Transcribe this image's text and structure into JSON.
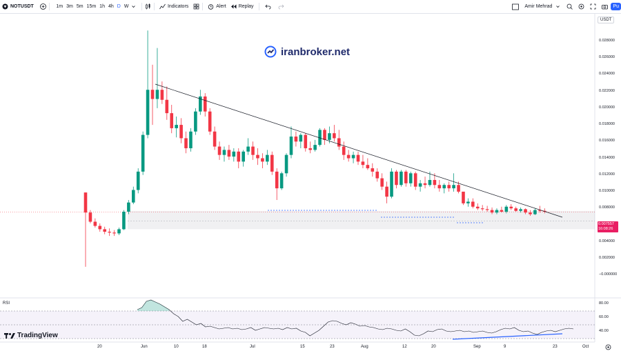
{
  "toolbar": {
    "symbol": "NOTUSDT",
    "timeframes": [
      "1m",
      "3m",
      "5m",
      "15m",
      "1h",
      "4h",
      "D",
      "W"
    ],
    "active_timeframe": "D",
    "indicators_label": "Indicators",
    "alert_label": "Alert",
    "replay_label": "Replay",
    "user_name": "Amir Mehrad",
    "publish_label": "Pu"
  },
  "watermark": {
    "text": "iranbroker.net"
  },
  "branding": {
    "text": "TradingView"
  },
  "price_axis": {
    "currency": "USDT",
    "ticks": [
      "0.028000",
      "0.026000",
      "0.024000",
      "0.022000",
      "0.020000",
      "0.018000",
      "0.016000",
      "0.014000",
      "0.012000",
      "0.010000",
      "0.008000",
      "0.006000",
      "0.004000",
      "0.002000",
      "−0.000000"
    ],
    "last_price": "0.007557",
    "countdown": "16:08:26"
  },
  "time_axis": {
    "ticks": [
      "20",
      "Jun",
      "10",
      "18",
      "Jul",
      "15",
      "23",
      "Aug",
      "12",
      "20",
      "Sep",
      "9",
      "23",
      "Oct"
    ]
  },
  "rsi": {
    "label": "RSI",
    "ticks": [
      "80.00",
      "60.00",
      "40.00"
    ]
  },
  "chart_data": {
    "type": "candlestick",
    "symbol": "NOTUSDT",
    "interval": "D",
    "ylim": [
      0,
      0.029
    ],
    "y_ticks": [
      0,
      0.002,
      0.004,
      0.006,
      0.008,
      0.01,
      0.012,
      0.014,
      0.016,
      0.018,
      0.02,
      0.022,
      0.024,
      0.026,
      0.028
    ],
    "last_price": 0.007557,
    "support_zone": [
      0.0055,
      0.0077
    ],
    "up_color": "#089981",
    "down_color": "#f23645",
    "candles": [
      [
        0.0099,
        0.0099,
        0.001,
        0.0075
      ],
      [
        0.0075,
        0.0078,
        0.0062,
        0.0064
      ],
      [
        0.0064,
        0.0068,
        0.0057,
        0.0059
      ],
      [
        0.0059,
        0.0062,
        0.0052,
        0.0055
      ],
      [
        0.0055,
        0.0058,
        0.0049,
        0.0052
      ],
      [
        0.0052,
        0.0056,
        0.0047,
        0.0051
      ],
      [
        0.0051,
        0.0054,
        0.0047,
        0.005
      ],
      [
        0.005,
        0.0057,
        0.0048,
        0.0055
      ],
      [
        0.0055,
        0.0078,
        0.0054,
        0.0076
      ],
      [
        0.0076,
        0.009,
        0.0073,
        0.0087
      ],
      [
        0.0087,
        0.0106,
        0.0085,
        0.0102
      ],
      [
        0.0102,
        0.0128,
        0.0098,
        0.0124
      ],
      [
        0.0124,
        0.0172,
        0.012,
        0.0168
      ],
      [
        0.0168,
        0.0293,
        0.0164,
        0.0222
      ],
      [
        0.0222,
        0.0252,
        0.018,
        0.0211
      ],
      [
        0.0211,
        0.0272,
        0.02,
        0.0222
      ],
      [
        0.0222,
        0.0232,
        0.0205,
        0.021
      ],
      [
        0.021,
        0.0226,
        0.0186,
        0.0194
      ],
      [
        0.0194,
        0.0204,
        0.017,
        0.0176
      ],
      [
        0.0176,
        0.019,
        0.0165,
        0.018
      ],
      [
        0.018,
        0.0188,
        0.0158,
        0.0164
      ],
      [
        0.0164,
        0.0172,
        0.0146,
        0.0152
      ],
      [
        0.0152,
        0.0176,
        0.0148,
        0.0172
      ],
      [
        0.0172,
        0.02,
        0.0168,
        0.0196
      ],
      [
        0.0196,
        0.0222,
        0.0192,
        0.0214
      ],
      [
        0.0214,
        0.0218,
        0.019,
        0.0196
      ],
      [
        0.0196,
        0.02,
        0.0168,
        0.0172
      ],
      [
        0.0172,
        0.0178,
        0.015,
        0.0154
      ],
      [
        0.0154,
        0.016,
        0.0138,
        0.0144
      ],
      [
        0.0144,
        0.0154,
        0.0136,
        0.015
      ],
      [
        0.015,
        0.0156,
        0.0138,
        0.0142
      ],
      [
        0.0142,
        0.0152,
        0.0136,
        0.0148
      ],
      [
        0.0148,
        0.0152,
        0.0128,
        0.0136
      ],
      [
        0.0136,
        0.015,
        0.013,
        0.0148
      ],
      [
        0.0148,
        0.0164,
        0.0144,
        0.0154
      ],
      [
        0.0154,
        0.016,
        0.0138,
        0.0144
      ],
      [
        0.0144,
        0.0152,
        0.0132,
        0.014
      ],
      [
        0.014,
        0.0146,
        0.0128,
        0.0136
      ],
      [
        0.0136,
        0.015,
        0.0132,
        0.0144
      ],
      [
        0.0144,
        0.0148,
        0.012,
        0.0124
      ],
      [
        0.0124,
        0.0128,
        0.009,
        0.0104
      ],
      [
        0.0104,
        0.0124,
        0.0102,
        0.0122
      ],
      [
        0.0122,
        0.0146,
        0.0118,
        0.0144
      ],
      [
        0.0144,
        0.0178,
        0.014,
        0.0166
      ],
      [
        0.0166,
        0.0172,
        0.0154,
        0.016
      ],
      [
        0.016,
        0.017,
        0.0152,
        0.0168
      ],
      [
        0.0168,
        0.017,
        0.0148,
        0.0152
      ],
      [
        0.0152,
        0.016,
        0.0146,
        0.015
      ],
      [
        0.015,
        0.0162,
        0.0148,
        0.0156
      ],
      [
        0.0156,
        0.0176,
        0.0154,
        0.0174
      ],
      [
        0.0174,
        0.0176,
        0.0156,
        0.0162
      ],
      [
        0.0162,
        0.0178,
        0.0158,
        0.017
      ],
      [
        0.017,
        0.018,
        0.016,
        0.0164
      ],
      [
        0.0164,
        0.0174,
        0.015,
        0.0154
      ],
      [
        0.0154,
        0.016,
        0.0138,
        0.0144
      ],
      [
        0.0144,
        0.015,
        0.0136,
        0.014
      ],
      [
        0.014,
        0.0148,
        0.0134,
        0.0144
      ],
      [
        0.0144,
        0.0148,
        0.0132,
        0.0136
      ],
      [
        0.0136,
        0.0144,
        0.0128,
        0.0132
      ],
      [
        0.0132,
        0.014,
        0.0126,
        0.0128
      ],
      [
        0.0128,
        0.0134,
        0.0118,
        0.0124
      ],
      [
        0.0124,
        0.0128,
        0.0112,
        0.0116
      ],
      [
        0.0116,
        0.0122,
        0.0102,
        0.0106
      ],
      [
        0.0106,
        0.0112,
        0.0086,
        0.0094
      ],
      [
        0.0094,
        0.0128,
        0.0092,
        0.0124
      ],
      [
        0.0124,
        0.0126,
        0.0104,
        0.0108
      ],
      [
        0.0108,
        0.0126,
        0.0106,
        0.0124
      ],
      [
        0.0124,
        0.0126,
        0.0106,
        0.011
      ],
      [
        0.011,
        0.0124,
        0.0106,
        0.0122
      ],
      [
        0.0122,
        0.0124,
        0.0102,
        0.0106
      ],
      [
        0.0106,
        0.0114,
        0.01,
        0.011
      ],
      [
        0.011,
        0.0118,
        0.0104,
        0.0108
      ],
      [
        0.0108,
        0.0124,
        0.0106,
        0.0114
      ],
      [
        0.0114,
        0.0122,
        0.0104,
        0.0108
      ],
      [
        0.0108,
        0.0114,
        0.01,
        0.0104
      ],
      [
        0.0104,
        0.011,
        0.0098,
        0.0108
      ],
      [
        0.0108,
        0.0112,
        0.01,
        0.0104
      ],
      [
        0.0104,
        0.0122,
        0.01,
        0.0108
      ],
      [
        0.0108,
        0.0112,
        0.0098,
        0.01
      ],
      [
        0.01,
        0.0098,
        0.0084,
        0.0086
      ],
      [
        0.0086,
        0.0092,
        0.0082,
        0.0088
      ],
      [
        0.0088,
        0.0092,
        0.008,
        0.0082
      ],
      [
        0.0082,
        0.0086,
        0.0078,
        0.008
      ],
      [
        0.008,
        0.0084,
        0.0077,
        0.0079
      ],
      [
        0.0079,
        0.0083,
        0.0076,
        0.0078
      ],
      [
        0.0078,
        0.0081,
        0.0073,
        0.0075
      ],
      [
        0.0075,
        0.008,
        0.0073,
        0.0078
      ],
      [
        0.0078,
        0.0082,
        0.0075,
        0.0076
      ],
      [
        0.0076,
        0.0084,
        0.0074,
        0.0082
      ],
      [
        0.0082,
        0.0085,
        0.0078,
        0.008
      ],
      [
        0.008,
        0.0082,
        0.0076,
        0.0077
      ],
      [
        0.0077,
        0.0081,
        0.0075,
        0.0079
      ],
      [
        0.0079,
        0.008,
        0.0073,
        0.0075
      ],
      [
        0.0075,
        0.0078,
        0.0071,
        0.0073
      ],
      [
        0.0073,
        0.008,
        0.0072,
        0.0078
      ],
      [
        0.0078,
        0.0083,
        0.0075,
        0.0077
      ],
      [
        0.0077,
        0.008,
        0.0074,
        0.0076
      ]
    ],
    "rsi_values": [
      72,
      75,
      84,
      86,
      83,
      80,
      76,
      72,
      66,
      62,
      55,
      58,
      54,
      50,
      52,
      47,
      48,
      46,
      44,
      45,
      46,
      44,
      45,
      43,
      44,
      46,
      42,
      44,
      46,
      45,
      44,
      45,
      43,
      46,
      44,
      45,
      41,
      39,
      34,
      38,
      42,
      48,
      54,
      56,
      55,
      52,
      50,
      53,
      51,
      48,
      49,
      47,
      46,
      44,
      43,
      45,
      44,
      42,
      41,
      44,
      40,
      35,
      34,
      37,
      41,
      40,
      43,
      44,
      41,
      40,
      41,
      42,
      40,
      41,
      39,
      40,
      41,
      39,
      38,
      40,
      43,
      45,
      44,
      46,
      42,
      40,
      41,
      38,
      36,
      39,
      41,
      42,
      40,
      42,
      44,
      45,
      44
    ]
  }
}
